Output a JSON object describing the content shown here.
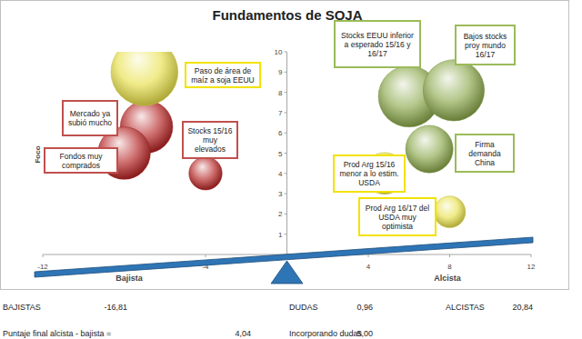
{
  "chart_data": {
    "type": "bubble",
    "title": "Fundamentos de SOJA",
    "x_label_left": "Bajista",
    "x_label_right": "Alcista",
    "ylabel": "Foco",
    "xlim": [
      -12,
      12
    ],
    "xticks": [
      -12,
      -4,
      4,
      8,
      12
    ],
    "ylim": [
      0,
      10
    ],
    "yticks": [
      1,
      2,
      3,
      4,
      5,
      6,
      7,
      8,
      9,
      10
    ],
    "grid": false,
    "series": [
      {
        "color": "#b52222",
        "x": [
          -6.9,
          -8.0,
          -4.0
        ],
        "values": [
          6.3,
          5.0,
          4.0
        ],
        "size": [
          5.5,
          5.5,
          2.2
        ],
        "labels": [
          "Mercado ya subió mucho",
          "Fondos muy comprados",
          "Stocks 15/16 muy elevados"
        ]
      },
      {
        "color": "#e8e04a",
        "x": [
          -7.0,
          4.8,
          8.0
        ],
        "values": [
          9.0,
          4.0,
          2.1
        ],
        "size": [
          9,
          3.5,
          2
        ],
        "labels": [
          "Paso de área de maíz a soja EEUU",
          "Prod Arg 15/16 menor a lo estim. USDA",
          "Prod Arg 16/17 del USDA muy optimista"
        ]
      },
      {
        "color": "#8aa84a",
        "x": [
          6.0,
          8.2,
          7.0
        ],
        "values": [
          7.8,
          8.1,
          5.2
        ],
        "size": [
          7.5,
          7.5,
          4.5
        ],
        "labels": [
          "Stocks EEUU inferior a esperado 15/16 y 16/17",
          "Bajos stocks proy mundo 16/17",
          "Firma demanda China"
        ]
      }
    ],
    "summary": [
      {
        "text": "BAJISTAS",
        "value": -16.81,
        "value_label": "-16,81"
      },
      {
        "text": "DUDAS",
        "value": 0.96,
        "value_label": "0,96"
      },
      {
        "text": "ALCISTAS",
        "value": 20.84,
        "value_label": "20,84"
      },
      {
        "text": "Puntaje final alcista - bajista =",
        "value": 4.04,
        "value_label": "4,04"
      },
      {
        "text": "Incorporando dudas",
        "value": 5.0,
        "value_label": "5,00"
      }
    ]
  }
}
